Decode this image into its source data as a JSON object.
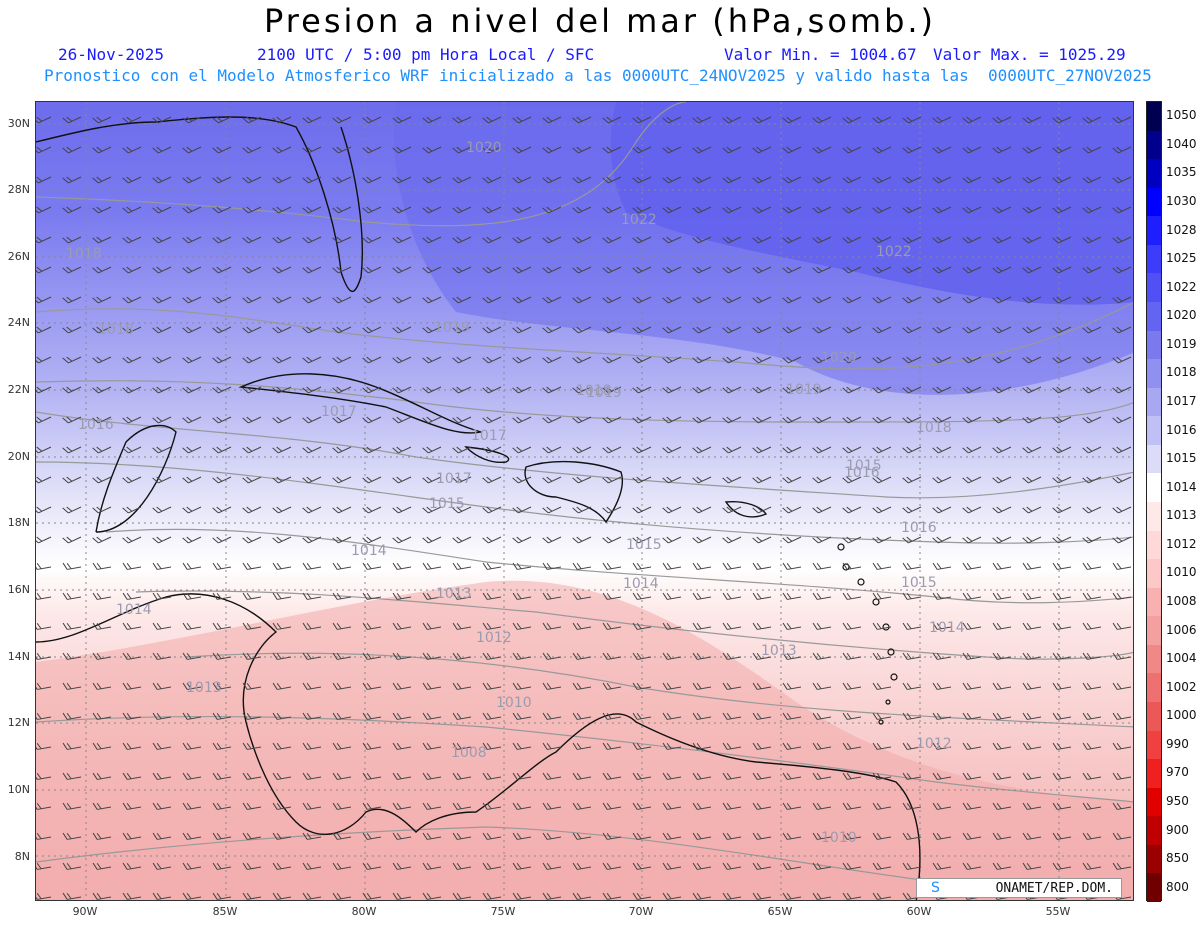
{
  "header": {
    "title": "Presion a nivel del mar (hPa,somb.)",
    "date": "26-Nov-2025",
    "time": "2100 UTC / 5:00 pm Hora Local / SFC",
    "min_label": "Valor Min. = 1004.67",
    "max_label": "Valor Max. = 1025.29",
    "forecast_line": "Pronostico con el Modelo Atmosferico WRF inicializado a las 0000UTC_24NOV2025 y valido hasta las  0000UTC_27NOV2025"
  },
  "map": {
    "y_labels": [
      "30N",
      "28N",
      "26N",
      "24N",
      "22N",
      "20N",
      "18N",
      "16N",
      "14N",
      "12N",
      "10N",
      "8N"
    ],
    "x_labels": [
      "90W",
      "85W",
      "80W",
      "75W",
      "70W",
      "65W",
      "60W",
      "55W"
    ],
    "contour_labels": [
      "1020",
      "1022",
      "1022",
      "1019",
      "1018",
      "1018",
      "1019",
      "1020",
      "1017",
      "1016",
      "1017",
      "1018",
      "1019",
      "1018",
      "1016",
      "1015",
      "1015",
      "1016",
      "1017",
      "1014",
      "1015",
      "1014",
      "1013",
      "1014",
      "1013",
      "1012",
      "1014",
      "1015",
      "1013",
      "1010",
      "1008",
      "1012",
      "1010"
    ]
  },
  "colorbar": {
    "levels": [
      "1050",
      "1040",
      "1035",
      "1030",
      "1028",
      "1025",
      "1022",
      "1020",
      "1019",
      "1018",
      "1017",
      "1016",
      "1015",
      "1014",
      "1013",
      "1012",
      "1010",
      "1008",
      "1006",
      "1004",
      "1002",
      "1000",
      "990",
      "970",
      "950",
      "900",
      "850",
      "800"
    ],
    "colors": [
      "#000050",
      "#00008c",
      "#0000c0",
      "#0000ff",
      "#1e1eff",
      "#3c3cfa",
      "#5050f5",
      "#6464f2",
      "#7a7aee",
      "#9090f0",
      "#a8a8f2",
      "#c0c0f5",
      "#dcdcf8",
      "#ffffff",
      "#ffe8e8",
      "#ffd8d8",
      "#fcc8c8",
      "#f8b0b0",
      "#f4a0a0",
      "#f08888",
      "#ee7070",
      "#ec5858",
      "#f04040",
      "#f02020",
      "#e00000",
      "#c00000",
      "#9a0000",
      "#700000"
    ]
  },
  "credit": {
    "symbol": "S",
    "text": "ONAMET/REP.DOM."
  }
}
